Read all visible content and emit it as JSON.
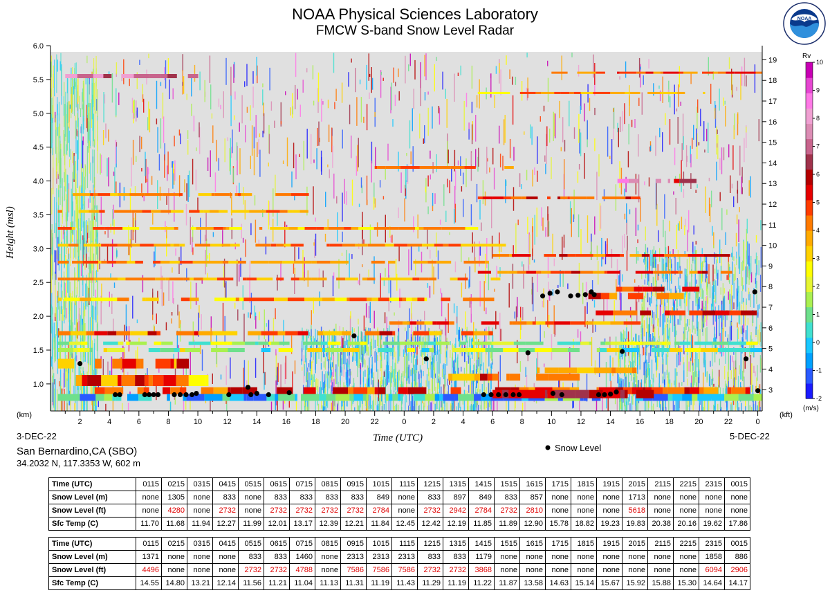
{
  "header": {
    "title": "NOAA Physical Sciences Laboratory",
    "subtitle": "FMCW S-band Snow Level Radar",
    "logo_text": "NOAA",
    "logo_ring_text": "NATIONAL OCEANIC AND ATMOSPHERIC ADMINISTRATION · U.S. DEPARTMENT OF COMMERCE"
  },
  "station": {
    "name": "San Bernardino,CA (SBO)",
    "coords": "34.2032 N, 117.3353 W, 602 m"
  },
  "chart_data": {
    "type": "heatmap",
    "title": "FMCW S-band Snow Level Radar",
    "xlabel": "Time (UTC)",
    "ylabel": "Height (msl)",
    "y_unit_left": "(km)",
    "y_unit_right": "(kft)",
    "ylim": [
      0.6,
      6.0
    ],
    "y_ticks_km": [
      "1.0",
      "1.5",
      "2.0",
      "2.5",
      "3.0",
      "3.5",
      "4.0",
      "4.5",
      "5.0",
      "5.5",
      "6.0"
    ],
    "y_ticks_kft": [
      "3",
      "4",
      "5",
      "6",
      "7",
      "8",
      "9",
      "10",
      "11",
      "12",
      "13",
      "14",
      "15",
      "16",
      "17",
      "18",
      "19"
    ],
    "x_tick_labels": [
      "2",
      "4",
      "6",
      "8",
      "10",
      "12",
      "14",
      "16",
      "18",
      "20",
      "22",
      "0",
      "2",
      "4",
      "6",
      "8",
      "10",
      "12",
      "14",
      "16",
      "18",
      "20",
      "22",
      "0"
    ],
    "x_hours_from_start": [
      2,
      4,
      6,
      8,
      10,
      12,
      14,
      16,
      18,
      20,
      22,
      24,
      26,
      28,
      30,
      32,
      34,
      36,
      38,
      40,
      42,
      44,
      46,
      48
    ],
    "xlim_hours": [
      0,
      48.3
    ],
    "start_date": "3-DEC-22",
    "end_date": "5-DEC-22",
    "colorbar": {
      "label": "Rv",
      "unit": "(m/s)",
      "ticks": [
        "-2",
        "-1",
        "0",
        "1",
        "2",
        "3",
        "4",
        "5",
        "6",
        "7",
        "8",
        "9",
        "10"
      ],
      "colors": [
        "#1a1aff",
        "#2a5aff",
        "#00a0ff",
        "#19c8ff",
        "#40e0d0",
        "#6ee08c",
        "#aaf050",
        "#e6f532",
        "#ffff00",
        "#ffd200",
        "#ffaa00",
        "#ff7a00",
        "#ff3c00",
        "#e60000",
        "#b40000",
        "#a0324b",
        "#c8648c",
        "#dc8cb4",
        "#f0a0d2",
        "#ff78e6",
        "#e646d2",
        "#c800b4"
      ]
    },
    "snow_level_label": "Snow Level",
    "snow_level_points": [
      {
        "x": 2.0,
        "y": 1.3
      },
      {
        "x": 4.4,
        "y": 0.84
      },
      {
        "x": 4.7,
        "y": 0.84
      },
      {
        "x": 6.4,
        "y": 0.84
      },
      {
        "x": 6.7,
        "y": 0.84
      },
      {
        "x": 7.0,
        "y": 0.84
      },
      {
        "x": 7.3,
        "y": 0.84
      },
      {
        "x": 8.4,
        "y": 0.84
      },
      {
        "x": 8.8,
        "y": 0.84
      },
      {
        "x": 9.2,
        "y": 0.84
      },
      {
        "x": 9.6,
        "y": 0.84
      },
      {
        "x": 9.9,
        "y": 0.86
      },
      {
        "x": 12.1,
        "y": 0.84
      },
      {
        "x": 13.4,
        "y": 0.95
      },
      {
        "x": 13.6,
        "y": 0.84
      },
      {
        "x": 14.0,
        "y": 0.86
      },
      {
        "x": 14.8,
        "y": 0.84
      },
      {
        "x": 16.2,
        "y": 0.87
      },
      {
        "x": 20.6,
        "y": 1.71
      },
      {
        "x": 25.5,
        "y": 1.37
      },
      {
        "x": 29.4,
        "y": 0.84
      },
      {
        "x": 29.9,
        "y": 0.84
      },
      {
        "x": 30.4,
        "y": 0.84
      },
      {
        "x": 30.9,
        "y": 0.84
      },
      {
        "x": 31.4,
        "y": 0.84
      },
      {
        "x": 31.8,
        "y": 0.84
      },
      {
        "x": 32.4,
        "y": 1.46
      },
      {
        "x": 33.4,
        "y": 2.3
      },
      {
        "x": 33.9,
        "y": 2.34
      },
      {
        "x": 34.4,
        "y": 2.36
      },
      {
        "x": 34.1,
        "y": 0.86
      },
      {
        "x": 34.7,
        "y": 0.84
      },
      {
        "x": 35.3,
        "y": 2.3
      },
      {
        "x": 35.8,
        "y": 2.31
      },
      {
        "x": 36.3,
        "y": 2.32
      },
      {
        "x": 36.7,
        "y": 2.36
      },
      {
        "x": 36.9,
        "y": 2.32
      },
      {
        "x": 37.2,
        "y": 0.84
      },
      {
        "x": 37.6,
        "y": 0.84
      },
      {
        "x": 38.0,
        "y": 0.85
      },
      {
        "x": 38.4,
        "y": 0.88
      },
      {
        "x": 38.8,
        "y": 1.48
      },
      {
        "x": 47.2,
        "y": 1.37
      },
      {
        "x": 47.8,
        "y": 2.36
      },
      {
        "x": 48.0,
        "y": 0.9
      }
    ]
  },
  "tables": [
    {
      "time_label": "Time (UTC)",
      "snow_m_label": "Snow Level (m)",
      "snow_ft_label": "Snow Level (ft)",
      "temp_label": "Sfc Temp (C)",
      "times": [
        "0115",
        "0215",
        "0315",
        "0415",
        "0515",
        "0615",
        "0715",
        "0815",
        "0915",
        "1015",
        "1115",
        "1215",
        "1315",
        "1415",
        "1515",
        "1615",
        "1715",
        "1815",
        "1915",
        "2015",
        "2115",
        "2215",
        "2315",
        "0015"
      ],
      "snow_m": [
        "none",
        "1305",
        "none",
        "833",
        "none",
        "833",
        "833",
        "833",
        "833",
        "849",
        "none",
        "833",
        "897",
        "849",
        "833",
        "857",
        "none",
        "none",
        "none",
        "1713",
        "none",
        "none",
        "none",
        "none"
      ],
      "snow_ft": [
        "none",
        "4280",
        "none",
        "2732",
        "none",
        "2732",
        "2732",
        "2732",
        "2732",
        "2784",
        "none",
        "2732",
        "2942",
        "2784",
        "2732",
        "2810",
        "none",
        "none",
        "none",
        "5618",
        "none",
        "none",
        "none",
        "none"
      ],
      "temp": [
        "11.70",
        "11.68",
        "11.94",
        "12.27",
        "11.99",
        "12.01",
        "13.17",
        "12.39",
        "12.21",
        "11.84",
        "12.45",
        "12.42",
        "12.19",
        "11.85",
        "11.89",
        "12.90",
        "15.78",
        "18.82",
        "19.23",
        "19.83",
        "20.38",
        "20.16",
        "19.62",
        "17.86"
      ]
    },
    {
      "time_label": "Time (UTC)",
      "snow_m_label": "Snow Level (m)",
      "snow_ft_label": "Snow Level (ft)",
      "temp_label": "Sfc Temp (C)",
      "times": [
        "0115",
        "0215",
        "0315",
        "0415",
        "0515",
        "0615",
        "0715",
        "0815",
        "0915",
        "1015",
        "1115",
        "1215",
        "1315",
        "1415",
        "1515",
        "1615",
        "1715",
        "1815",
        "1915",
        "2015",
        "2115",
        "2215",
        "2315",
        "0015"
      ],
      "snow_m": [
        "1371",
        "none",
        "none",
        "none",
        "833",
        "833",
        "1460",
        "none",
        "2313",
        "2313",
        "2313",
        "833",
        "833",
        "1179",
        "none",
        "none",
        "none",
        "none",
        "none",
        "none",
        "none",
        "none",
        "1858",
        "886"
      ],
      "snow_ft": [
        "4496",
        "none",
        "none",
        "none",
        "2732",
        "2732",
        "4788",
        "none",
        "7586",
        "7586",
        "7586",
        "2732",
        "2732",
        "3868",
        "none",
        "none",
        "none",
        "none",
        "none",
        "none",
        "none",
        "none",
        "6094",
        "2906"
      ],
      "temp": [
        "14.55",
        "14.80",
        "13.21",
        "12.14",
        "11.56",
        "11.21",
        "11.04",
        "11.13",
        "11.31",
        "11.19",
        "11.43",
        "11.29",
        "11.19",
        "11.22",
        "11.87",
        "13.58",
        "14.63",
        "15.14",
        "15.67",
        "15.92",
        "15.88",
        "15.30",
        "14.64",
        "14.17"
      ]
    }
  ]
}
